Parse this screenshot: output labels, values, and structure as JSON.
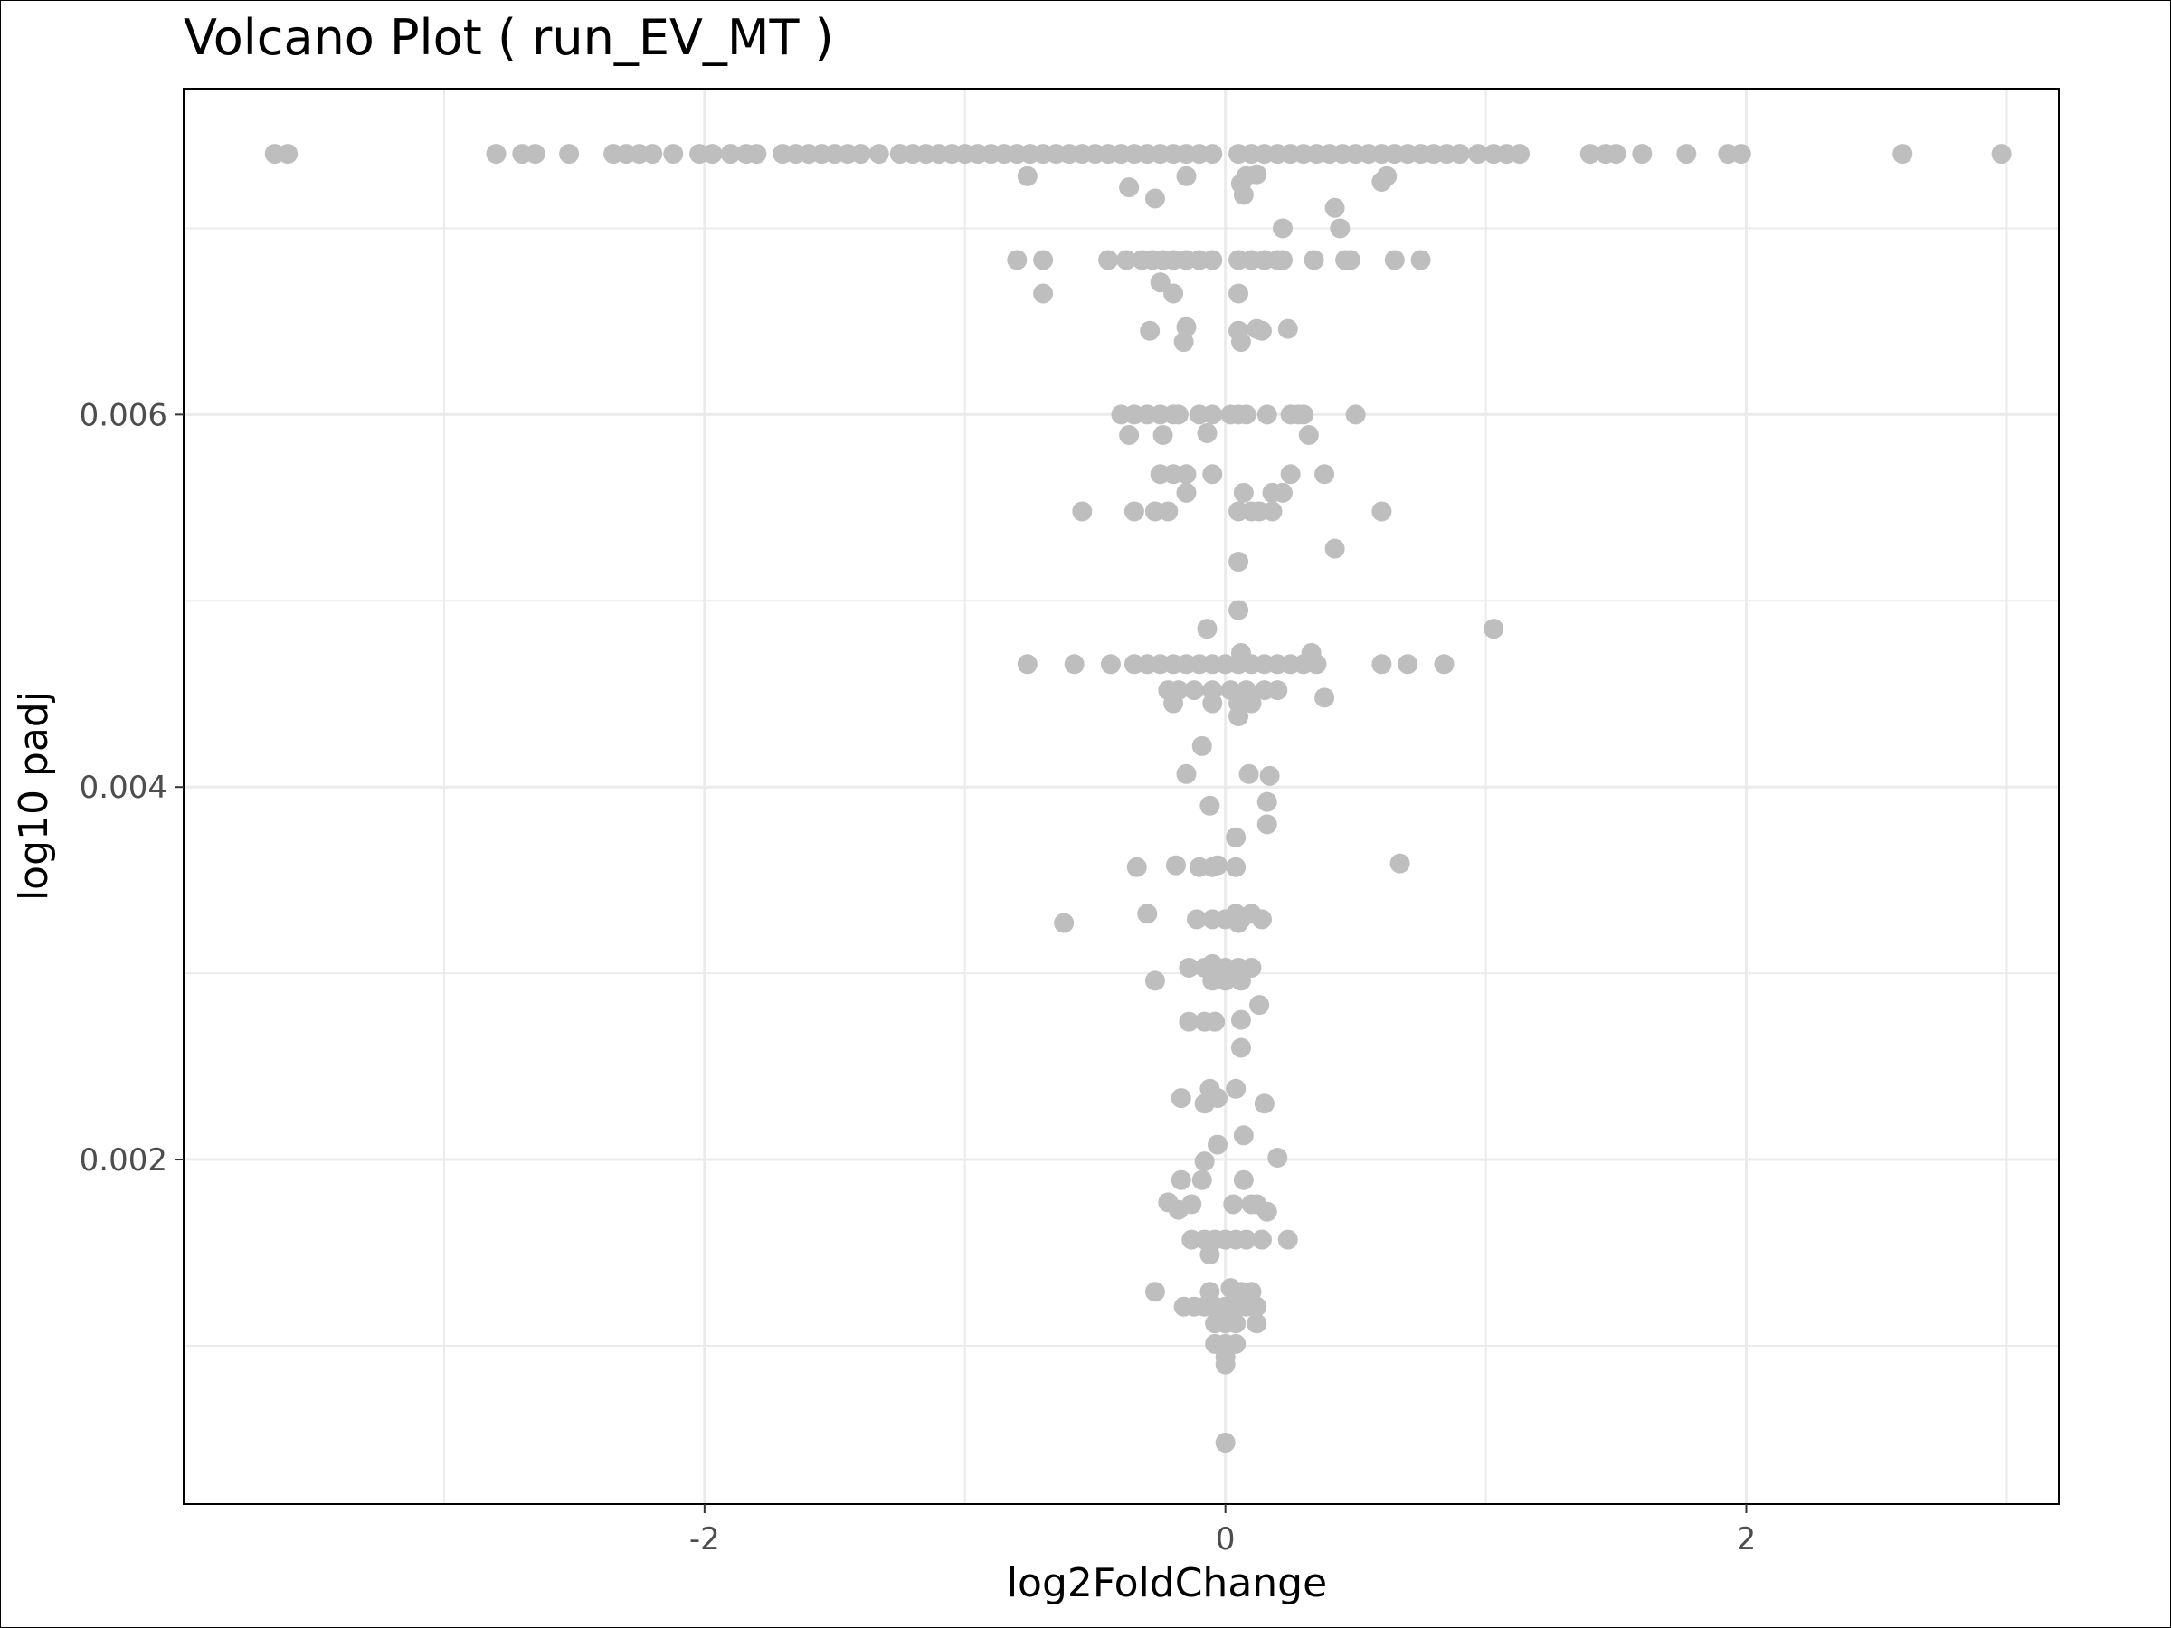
{
  "chart_data": {
    "type": "scatter",
    "title": "Volcano Plot ( run_EV_MT )",
    "xlabel": "log2FoldChange",
    "ylabel": "log10 padj",
    "xlim": [
      -4.0,
      3.2
    ],
    "ylim": [
      0.00015,
      0.00775
    ],
    "x_ticks": [
      -2,
      0,
      2
    ],
    "x_tick_labels": [
      "-2",
      "0",
      "2"
    ],
    "y_ticks": [
      0.002,
      0.004,
      0.006
    ],
    "y_tick_labels": [
      "0.002",
      "0.004",
      "0.006"
    ],
    "x_minor_gridlines": [
      -3,
      -1,
      1,
      3
    ],
    "y_minor_gridlines": [
      0.001,
      0.003,
      0.005,
      0.007
    ],
    "grid": true,
    "legend": "none",
    "point_color": "#bebebe",
    "series": [
      {
        "points": [
          [
            -3.65,
            0.0074
          ],
          [
            -3.6,
            0.0074
          ],
          [
            -2.8,
            0.0074
          ],
          [
            -2.7,
            0.0074
          ],
          [
            -2.65,
            0.0074
          ],
          [
            -2.52,
            0.0074
          ],
          [
            -2.35,
            0.0074
          ],
          [
            -2.3,
            0.0074
          ],
          [
            -2.25,
            0.0074
          ],
          [
            -2.2,
            0.0074
          ],
          [
            -2.12,
            0.0074
          ],
          [
            -2.02,
            0.0074
          ],
          [
            -1.97,
            0.0074
          ],
          [
            -1.9,
            0.0074
          ],
          [
            -1.84,
            0.0074
          ],
          [
            -1.8,
            0.0074
          ],
          [
            -1.7,
            0.0074
          ],
          [
            -1.65,
            0.0074
          ],
          [
            -1.6,
            0.0074
          ],
          [
            -1.55,
            0.0074
          ],
          [
            -1.5,
            0.0074
          ],
          [
            -1.45,
            0.0074
          ],
          [
            -1.4,
            0.0074
          ],
          [
            -1.33,
            0.0074
          ],
          [
            -1.25,
            0.0074
          ],
          [
            -1.2,
            0.0074
          ],
          [
            -1.15,
            0.0074
          ],
          [
            -1.1,
            0.0074
          ],
          [
            -1.05,
            0.0074
          ],
          [
            -1.0,
            0.0074
          ],
          [
            -0.95,
            0.0074
          ],
          [
            -0.9,
            0.0074
          ],
          [
            -0.85,
            0.0074
          ],
          [
            -0.8,
            0.0074
          ],
          [
            -0.75,
            0.0074
          ],
          [
            -0.7,
            0.0074
          ],
          [
            -0.65,
            0.0074
          ],
          [
            -0.6,
            0.0074
          ],
          [
            -0.55,
            0.0074
          ],
          [
            -0.5,
            0.0074
          ],
          [
            -0.45,
            0.0074
          ],
          [
            -0.4,
            0.0074
          ],
          [
            -0.35,
            0.0074
          ],
          [
            -0.3,
            0.0074
          ],
          [
            -0.25,
            0.0074
          ],
          [
            -0.2,
            0.0074
          ],
          [
            -0.15,
            0.0074
          ],
          [
            -0.1,
            0.0074
          ],
          [
            -0.05,
            0.0074
          ],
          [
            0.05,
            0.0074
          ],
          [
            0.1,
            0.0074
          ],
          [
            0.15,
            0.0074
          ],
          [
            0.2,
            0.0074
          ],
          [
            0.25,
            0.0074
          ],
          [
            0.3,
            0.0074
          ],
          [
            0.35,
            0.0074
          ],
          [
            0.4,
            0.0074
          ],
          [
            0.45,
            0.0074
          ],
          [
            0.5,
            0.0074
          ],
          [
            0.55,
            0.0074
          ],
          [
            0.6,
            0.0074
          ],
          [
            0.65,
            0.0074
          ],
          [
            0.7,
            0.0074
          ],
          [
            0.75,
            0.0074
          ],
          [
            0.8,
            0.0074
          ],
          [
            0.85,
            0.0074
          ],
          [
            0.9,
            0.0074
          ],
          [
            0.97,
            0.0074
          ],
          [
            1.03,
            0.0074
          ],
          [
            1.08,
            0.0074
          ],
          [
            1.13,
            0.0074
          ],
          [
            1.4,
            0.0074
          ],
          [
            1.46,
            0.0074
          ],
          [
            1.5,
            0.0074
          ],
          [
            1.6,
            0.0074
          ],
          [
            1.77,
            0.0074
          ],
          [
            1.93,
            0.0074
          ],
          [
            1.98,
            0.0074
          ],
          [
            2.6,
            0.0074
          ],
          [
            2.98,
            0.0074
          ],
          [
            -0.76,
            0.00728
          ],
          [
            -0.37,
            0.00722
          ],
          [
            -0.27,
            0.00716
          ],
          [
            -0.15,
            0.00728
          ],
          [
            0.06,
            0.00724
          ],
          [
            0.08,
            0.00728
          ],
          [
            0.12,
            0.00729
          ],
          [
            0.6,
            0.00725
          ],
          [
            0.62,
            0.00728
          ],
          [
            0.07,
            0.00718
          ],
          [
            0.22,
            0.007
          ],
          [
            0.42,
            0.00711
          ],
          [
            0.44,
            0.007
          ],
          [
            -0.8,
            0.00683
          ],
          [
            -0.7,
            0.00683
          ],
          [
            -0.45,
            0.00683
          ],
          [
            -0.38,
            0.00683
          ],
          [
            -0.32,
            0.00683
          ],
          [
            -0.28,
            0.00683
          ],
          [
            -0.24,
            0.00683
          ],
          [
            -0.2,
            0.00683
          ],
          [
            -0.15,
            0.00683
          ],
          [
            -0.1,
            0.00683
          ],
          [
            -0.05,
            0.00683
          ],
          [
            0.05,
            0.00683
          ],
          [
            0.1,
            0.00683
          ],
          [
            0.15,
            0.00683
          ],
          [
            0.2,
            0.00683
          ],
          [
            0.22,
            0.00683
          ],
          [
            0.34,
            0.00683
          ],
          [
            0.46,
            0.00683
          ],
          [
            0.48,
            0.00683
          ],
          [
            0.65,
            0.00683
          ],
          [
            0.75,
            0.00683
          ],
          [
            -0.7,
            0.00665
          ],
          [
            -0.25,
            0.00671
          ],
          [
            -0.2,
            0.00665
          ],
          [
            0.05,
            0.00665
          ],
          [
            -0.29,
            0.00645
          ],
          [
            -0.15,
            0.00647
          ],
          [
            -0.16,
            0.00639
          ],
          [
            0.05,
            0.00645
          ],
          [
            0.06,
            0.00639
          ],
          [
            0.12,
            0.00646
          ],
          [
            0.14,
            0.00645
          ],
          [
            0.24,
            0.00646
          ],
          [
            -0.4,
            0.006
          ],
          [
            -0.35,
            0.006
          ],
          [
            -0.3,
            0.006
          ],
          [
            -0.25,
            0.006
          ],
          [
            -0.2,
            0.006
          ],
          [
            -0.18,
            0.006
          ],
          [
            -0.1,
            0.006
          ],
          [
            -0.05,
            0.006
          ],
          [
            0.02,
            0.006
          ],
          [
            0.05,
            0.006
          ],
          [
            0.08,
            0.006
          ],
          [
            0.16,
            0.006
          ],
          [
            0.25,
            0.006
          ],
          [
            0.28,
            0.006
          ],
          [
            0.3,
            0.006
          ],
          [
            0.5,
            0.006
          ],
          [
            -0.37,
            0.00589
          ],
          [
            -0.24,
            0.00589
          ],
          [
            -0.07,
            0.0059
          ],
          [
            0.32,
            0.00589
          ],
          [
            -0.25,
            0.00568
          ],
          [
            -0.2,
            0.00568
          ],
          [
            -0.15,
            0.00568
          ],
          [
            -0.05,
            0.00568
          ],
          [
            0.22,
            0.00558
          ],
          [
            0.18,
            0.00558
          ],
          [
            0.25,
            0.00568
          ],
          [
            0.38,
            0.00568
          ],
          [
            0.07,
            0.00558
          ],
          [
            -0.15,
            0.00558
          ],
          [
            -0.55,
            0.00548
          ],
          [
            -0.35,
            0.00548
          ],
          [
            -0.27,
            0.00548
          ],
          [
            -0.22,
            0.00548
          ],
          [
            0.05,
            0.00548
          ],
          [
            0.1,
            0.00548
          ],
          [
            0.13,
            0.00548
          ],
          [
            0.18,
            0.00548
          ],
          [
            0.6,
            0.00548
          ],
          [
            0.42,
            0.00528
          ],
          [
            0.05,
            0.00521
          ],
          [
            0.05,
            0.00495
          ],
          [
            1.03,
            0.00485
          ],
          [
            -0.07,
            0.00485
          ],
          [
            -0.76,
            0.00466
          ],
          [
            -0.58,
            0.00466
          ],
          [
            -0.44,
            0.00466
          ],
          [
            -0.35,
            0.00466
          ],
          [
            -0.3,
            0.00466
          ],
          [
            -0.25,
            0.00466
          ],
          [
            -0.2,
            0.00466
          ],
          [
            -0.15,
            0.00466
          ],
          [
            -0.1,
            0.00466
          ],
          [
            -0.05,
            0.00466
          ],
          [
            0.0,
            0.00466
          ],
          [
            0.05,
            0.00466
          ],
          [
            0.1,
            0.00466
          ],
          [
            0.15,
            0.00466
          ],
          [
            0.2,
            0.00466
          ],
          [
            0.25,
            0.00466
          ],
          [
            0.3,
            0.00466
          ],
          [
            0.35,
            0.00466
          ],
          [
            0.6,
            0.00466
          ],
          [
            0.7,
            0.00466
          ],
          [
            0.84,
            0.00466
          ],
          [
            0.33,
            0.00472
          ],
          [
            0.06,
            0.00472
          ],
          [
            -0.22,
            0.00452
          ],
          [
            -0.18,
            0.00452
          ],
          [
            -0.12,
            0.00452
          ],
          [
            -0.05,
            0.00452
          ],
          [
            0.02,
            0.00452
          ],
          [
            0.08,
            0.00452
          ],
          [
            0.15,
            0.00452
          ],
          [
            0.2,
            0.00452
          ],
          [
            -0.2,
            0.00445
          ],
          [
            -0.05,
            0.00445
          ],
          [
            0.05,
            0.00445
          ],
          [
            0.1,
            0.00445
          ],
          [
            0.38,
            0.00448
          ],
          [
            0.05,
            0.00438
          ],
          [
            -0.09,
            0.00422
          ],
          [
            -0.15,
            0.00407
          ],
          [
            0.09,
            0.00407
          ],
          [
            0.17,
            0.00406
          ],
          [
            -0.06,
            0.0039
          ],
          [
            0.16,
            0.00392
          ],
          [
            0.16,
            0.0038
          ],
          [
            0.04,
            0.00373
          ],
          [
            -0.34,
            0.00357
          ],
          [
            -0.19,
            0.00358
          ],
          [
            -0.1,
            0.00357
          ],
          [
            -0.05,
            0.00357
          ],
          [
            -0.03,
            0.00358
          ],
          [
            0.04,
            0.00357
          ],
          [
            0.67,
            0.00359
          ],
          [
            -0.62,
            0.00327
          ],
          [
            -0.3,
            0.00332
          ],
          [
            -0.11,
            0.00329
          ],
          [
            -0.05,
            0.00329
          ],
          [
            0.0,
            0.00329
          ],
          [
            0.04,
            0.00332
          ],
          [
            0.06,
            0.00329
          ],
          [
            0.1,
            0.00332
          ],
          [
            0.14,
            0.00329
          ],
          [
            0.05,
            0.00327
          ],
          [
            -0.14,
            0.00303
          ],
          [
            -0.08,
            0.00303
          ],
          [
            -0.05,
            0.00305
          ],
          [
            0.0,
            0.00303
          ],
          [
            0.05,
            0.00303
          ],
          [
            0.1,
            0.00303
          ],
          [
            -0.27,
            0.00296
          ],
          [
            -0.05,
            0.00296
          ],
          [
            0.0,
            0.00296
          ],
          [
            0.06,
            0.00296
          ],
          [
            0.13,
            0.00283
          ],
          [
            -0.14,
            0.00274
          ],
          [
            -0.08,
            0.00274
          ],
          [
            -0.04,
            0.00274
          ],
          [
            0.06,
            0.00275
          ],
          [
            0.06,
            0.0026
          ],
          [
            -0.06,
            0.00238
          ],
          [
            -0.17,
            0.00233
          ],
          [
            -0.08,
            0.0023
          ],
          [
            -0.03,
            0.00233
          ],
          [
            0.04,
            0.00238
          ],
          [
            0.15,
            0.0023
          ],
          [
            0.07,
            0.00213
          ],
          [
            -0.03,
            0.00208
          ],
          [
            0.2,
            0.00201
          ],
          [
            -0.08,
            0.00199
          ],
          [
            -0.17,
            0.00189
          ],
          [
            -0.09,
            0.00189
          ],
          [
            0.07,
            0.00189
          ],
          [
            -0.22,
            0.00177
          ],
          [
            -0.18,
            0.00173
          ],
          [
            -0.13,
            0.00176
          ],
          [
            0.03,
            0.00176
          ],
          [
            0.1,
            0.00176
          ],
          [
            0.12,
            0.00176
          ],
          [
            0.16,
            0.00172
          ],
          [
            -0.13,
            0.00157
          ],
          [
            -0.08,
            0.00157
          ],
          [
            -0.04,
            0.00157
          ],
          [
            0.0,
            0.00157
          ],
          [
            0.04,
            0.00157
          ],
          [
            0.08,
            0.00157
          ],
          [
            0.14,
            0.00157
          ],
          [
            0.24,
            0.00157
          ],
          [
            -0.06,
            0.00149
          ],
          [
            -0.27,
            0.00129
          ],
          [
            -0.06,
            0.00129
          ],
          [
            0.02,
            0.00131
          ],
          [
            0.06,
            0.00129
          ],
          [
            0.1,
            0.00129
          ],
          [
            -0.16,
            0.00121
          ],
          [
            -0.12,
            0.00121
          ],
          [
            -0.08,
            0.00121
          ],
          [
            -0.04,
            0.00121
          ],
          [
            0.0,
            0.00121
          ],
          [
            0.04,
            0.00121
          ],
          [
            0.08,
            0.00121
          ],
          [
            0.12,
            0.00121
          ],
          [
            -0.04,
            0.00112
          ],
          [
            0.0,
            0.00112
          ],
          [
            0.04,
            0.00112
          ],
          [
            0.12,
            0.00112
          ],
          [
            -0.04,
            0.00101
          ],
          [
            0.0,
            0.00101
          ],
          [
            0.04,
            0.00101
          ],
          [
            0.0,
            0.00094
          ],
          [
            0.0,
            0.0009
          ],
          [
            0.0,
            0.00048
          ]
        ]
      }
    ]
  }
}
